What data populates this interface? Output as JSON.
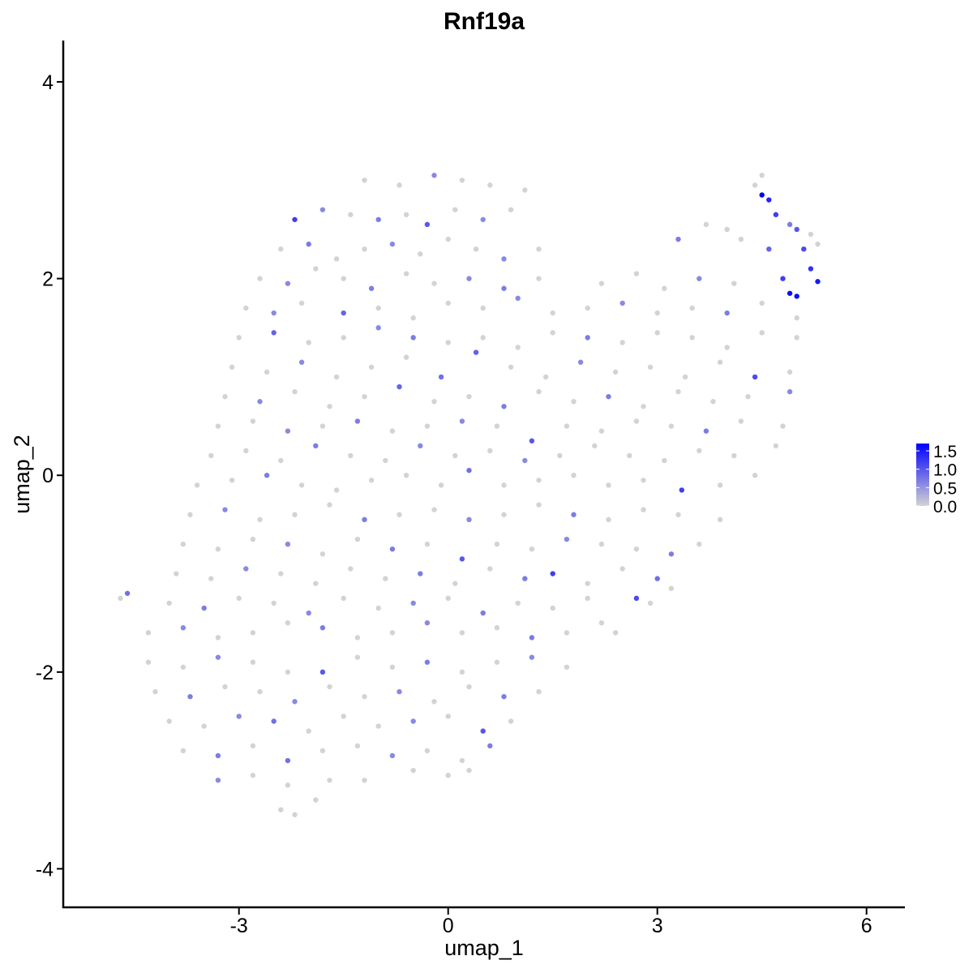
{
  "chart_data": {
    "type": "scatter",
    "title": "Rnf19a",
    "xlabel": "umap_1",
    "ylabel": "umap_2",
    "xlim": [
      -5.52,
      6.55
    ],
    "ylim": [
      -4.4,
      4.42
    ],
    "xticks": [
      -3,
      0,
      3,
      6
    ],
    "xtick_labels": [
      "-3",
      "0",
      "3",
      "6"
    ],
    "yticks": [
      -4,
      -2,
      0,
      2,
      4
    ],
    "ytick_labels": [
      "-4",
      "-2",
      "0",
      "2",
      "4"
    ],
    "grid": false,
    "legend": {
      "placement": "right",
      "ticks": [
        0.0,
        0.5,
        1.0,
        1.5
      ],
      "tick_labels": [
        "0.0",
        "0.5",
        "1.0",
        "1.5"
      ],
      "range": [
        0,
        1.7
      ]
    },
    "colors": {
      "low": "#d3d3d3",
      "high": "#0000ff"
    },
    "points_format": "[umap_1, umap_2, expression]",
    "points": [
      [
        -1.2,
        3.0,
        0
      ],
      [
        -0.7,
        2.95,
        0
      ],
      [
        -0.2,
        3.05,
        0.6
      ],
      [
        0.2,
        3.0,
        0
      ],
      [
        0.6,
        2.95,
        0
      ],
      [
        1.1,
        2.9,
        0
      ],
      [
        4.5,
        3.05,
        0
      ],
      [
        4.4,
        2.95,
        0
      ],
      [
        -2.2,
        2.6,
        1.2
      ],
      [
        -1.8,
        2.7,
        0.6
      ],
      [
        -1.4,
        2.65,
        0
      ],
      [
        -1.0,
        2.6,
        0.7
      ],
      [
        -0.6,
        2.65,
        0
      ],
      [
        -0.3,
        2.55,
        1.0
      ],
      [
        0.1,
        2.7,
        0
      ],
      [
        0.5,
        2.6,
        0.6
      ],
      [
        0.9,
        2.7,
        0
      ],
      [
        4.0,
        2.5,
        0
      ],
      [
        4.5,
        2.85,
        1.7
      ],
      [
        4.6,
        2.8,
        1.4
      ],
      [
        4.7,
        2.65,
        1.2
      ],
      [
        4.9,
        2.55,
        0.7
      ],
      [
        5.2,
        2.45,
        0
      ],
      [
        -2.4,
        2.3,
        0
      ],
      [
        -2.0,
        2.35,
        0.7
      ],
      [
        -1.6,
        2.2,
        0
      ],
      [
        -1.2,
        2.3,
        0
      ],
      [
        -0.8,
        2.35,
        0.6
      ],
      [
        -0.4,
        2.25,
        0
      ],
      [
        0.0,
        2.4,
        0
      ],
      [
        0.4,
        2.3,
        0
      ],
      [
        0.8,
        2.2,
        0.6
      ],
      [
        1.3,
        2.3,
        0
      ],
      [
        3.3,
        2.4,
        0.7
      ],
      [
        3.7,
        2.55,
        0
      ],
      [
        4.2,
        2.4,
        0
      ],
      [
        4.6,
        2.3,
        0.9
      ],
      [
        5.0,
        2.5,
        1.0
      ],
      [
        5.1,
        2.3,
        1.1
      ],
      [
        5.3,
        2.35,
        0
      ],
      [
        -2.7,
        2.0,
        0
      ],
      [
        -2.3,
        1.95,
        0.6
      ],
      [
        -1.9,
        2.1,
        0
      ],
      [
        -1.5,
        2.0,
        0
      ],
      [
        -1.1,
        1.9,
        0.7
      ],
      [
        -0.6,
        2.05,
        0
      ],
      [
        -0.2,
        1.95,
        0
      ],
      [
        0.3,
        2.0,
        0.6
      ],
      [
        0.8,
        1.9,
        0.7
      ],
      [
        1.3,
        2.0,
        0
      ],
      [
        2.2,
        1.95,
        0
      ],
      [
        2.7,
        2.05,
        0
      ],
      [
        3.1,
        1.9,
        0
      ],
      [
        3.6,
        2.0,
        0.6
      ],
      [
        4.1,
        1.95,
        0
      ],
      [
        4.8,
        2.0,
        1.2
      ],
      [
        4.9,
        1.85,
        1.6
      ],
      [
        5.0,
        1.82,
        1.6
      ],
      [
        5.2,
        2.1,
        1.3
      ],
      [
        5.3,
        1.97,
        1.5
      ],
      [
        -2.9,
        1.7,
        0
      ],
      [
        -2.5,
        1.65,
        0.6
      ],
      [
        -2.1,
        1.75,
        0
      ],
      [
        -1.5,
        1.65,
        0.9
      ],
      [
        -1.0,
        1.7,
        0
      ],
      [
        -0.5,
        1.6,
        0
      ],
      [
        0.0,
        1.75,
        0
      ],
      [
        0.5,
        1.7,
        0
      ],
      [
        1.0,
        1.8,
        0.6
      ],
      [
        1.5,
        1.65,
        0
      ],
      [
        2.0,
        1.7,
        0
      ],
      [
        2.5,
        1.75,
        0.6
      ],
      [
        3.0,
        1.65,
        0
      ],
      [
        3.5,
        1.7,
        0
      ],
      [
        4.0,
        1.65,
        0.7
      ],
      [
        4.5,
        1.75,
        0
      ],
      [
        5.0,
        1.6,
        0
      ],
      [
        -3.0,
        1.4,
        0
      ],
      [
        -2.5,
        1.45,
        0.9
      ],
      [
        -2.0,
        1.35,
        0
      ],
      [
        -1.5,
        1.4,
        0
      ],
      [
        -1.0,
        1.5,
        0.6
      ],
      [
        -0.5,
        1.4,
        0.7
      ],
      [
        0.0,
        1.35,
        0
      ],
      [
        0.5,
        1.4,
        0
      ],
      [
        1.0,
        1.3,
        0
      ],
      [
        1.5,
        1.45,
        0
      ],
      [
        2.0,
        1.4,
        0.7
      ],
      [
        2.5,
        1.35,
        0
      ],
      [
        3.0,
        1.45,
        0
      ],
      [
        3.5,
        1.4,
        0
      ],
      [
        4.0,
        1.3,
        0
      ],
      [
        4.5,
        1.45,
        0
      ],
      [
        5.0,
        1.4,
        0
      ],
      [
        -3.1,
        1.1,
        0
      ],
      [
        -2.6,
        1.05,
        0
      ],
      [
        -2.1,
        1.15,
        0.6
      ],
      [
        -1.6,
        1.0,
        0
      ],
      [
        -1.1,
        1.1,
        0
      ],
      [
        -0.6,
        1.2,
        0
      ],
      [
        -0.1,
        1.0,
        0.8
      ],
      [
        0.4,
        1.25,
        0.9
      ],
      [
        0.9,
        1.1,
        0
      ],
      [
        1.4,
        1.0,
        0
      ],
      [
        1.9,
        1.15,
        0.6
      ],
      [
        2.4,
        1.05,
        0
      ],
      [
        2.9,
        1.1,
        0
      ],
      [
        3.4,
        1.0,
        0
      ],
      [
        3.9,
        1.15,
        0
      ],
      [
        4.4,
        1.0,
        1.1
      ],
      [
        4.9,
        1.05,
        0
      ],
      [
        -3.2,
        0.8,
        0
      ],
      [
        -2.7,
        0.75,
        0.6
      ],
      [
        -2.2,
        0.85,
        0
      ],
      [
        -1.7,
        0.7,
        0
      ],
      [
        -1.2,
        0.8,
        0
      ],
      [
        -0.7,
        0.9,
        0.9
      ],
      [
        -0.2,
        0.75,
        0
      ],
      [
        0.3,
        0.8,
        0
      ],
      [
        0.8,
        0.7,
        0.7
      ],
      [
        1.3,
        0.85,
        0
      ],
      [
        1.8,
        0.75,
        0
      ],
      [
        2.3,
        0.8,
        0.7
      ],
      [
        2.8,
        0.7,
        0
      ],
      [
        3.3,
        0.85,
        0
      ],
      [
        3.8,
        0.75,
        0
      ],
      [
        4.3,
        0.8,
        0
      ],
      [
        4.9,
        0.85,
        0.6
      ],
      [
        -3.3,
        0.5,
        0
      ],
      [
        -2.8,
        0.55,
        0
      ],
      [
        -2.3,
        0.45,
        0.6
      ],
      [
        -1.8,
        0.5,
        0
      ],
      [
        -1.3,
        0.55,
        0.7
      ],
      [
        -0.8,
        0.45,
        0
      ],
      [
        -0.3,
        0.5,
        0
      ],
      [
        0.2,
        0.55,
        0.6
      ],
      [
        0.7,
        0.5,
        0
      ],
      [
        1.2,
        0.35,
        1.0
      ],
      [
        1.7,
        0.5,
        0
      ],
      [
        2.2,
        0.45,
        0
      ],
      [
        2.7,
        0.55,
        0
      ],
      [
        3.2,
        0.5,
        0
      ],
      [
        3.7,
        0.45,
        0.7
      ],
      [
        4.2,
        0.55,
        0
      ],
      [
        4.8,
        0.5,
        0
      ],
      [
        -3.4,
        0.2,
        0
      ],
      [
        -2.9,
        0.25,
        0
      ],
      [
        -2.4,
        0.15,
        0
      ],
      [
        -1.9,
        0.3,
        0.7
      ],
      [
        -1.4,
        0.2,
        0
      ],
      [
        -0.9,
        0.15,
        0
      ],
      [
        -0.4,
        0.3,
        0.6
      ],
      [
        0.1,
        0.2,
        0
      ],
      [
        0.6,
        0.25,
        0
      ],
      [
        1.1,
        0.15,
        0.6
      ],
      [
        1.6,
        0.2,
        0
      ],
      [
        2.1,
        0.3,
        0
      ],
      [
        2.6,
        0.2,
        0
      ],
      [
        3.1,
        0.15,
        0
      ],
      [
        3.6,
        0.25,
        0
      ],
      [
        4.1,
        0.2,
        0
      ],
      [
        4.7,
        0.3,
        0
      ],
      [
        -3.6,
        -0.1,
        0
      ],
      [
        -3.1,
        -0.05,
        0
      ],
      [
        -2.6,
        0.0,
        0.7
      ],
      [
        -2.1,
        -0.1,
        0
      ],
      [
        -1.6,
        -0.15,
        0
      ],
      [
        -1.1,
        -0.05,
        0
      ],
      [
        -0.6,
        0.0,
        0
      ],
      [
        -0.1,
        -0.1,
        0
      ],
      [
        0.3,
        0.05,
        0.8
      ],
      [
        0.8,
        -0.1,
        0
      ],
      [
        1.3,
        -0.05,
        0
      ],
      [
        1.8,
        0.0,
        0
      ],
      [
        2.3,
        -0.1,
        0
      ],
      [
        2.8,
        -0.05,
        0
      ],
      [
        3.35,
        -0.15,
        1.2
      ],
      [
        3.9,
        -0.1,
        0
      ],
      [
        4.4,
        0.0,
        0
      ],
      [
        -3.7,
        -0.4,
        0
      ],
      [
        -3.2,
        -0.35,
        0.6
      ],
      [
        -2.7,
        -0.45,
        0
      ],
      [
        -2.2,
        -0.4,
        0
      ],
      [
        -1.7,
        -0.3,
        0
      ],
      [
        -1.2,
        -0.45,
        0.7
      ],
      [
        -0.7,
        -0.4,
        0
      ],
      [
        -0.2,
        -0.35,
        0
      ],
      [
        0.3,
        -0.45,
        0.6
      ],
      [
        0.8,
        -0.4,
        0
      ],
      [
        1.3,
        -0.3,
        0
      ],
      [
        1.8,
        -0.4,
        0.7
      ],
      [
        2.3,
        -0.45,
        0
      ],
      [
        2.8,
        -0.35,
        0
      ],
      [
        3.3,
        -0.4,
        0
      ],
      [
        3.9,
        -0.45,
        0
      ],
      [
        -3.8,
        -0.7,
        0
      ],
      [
        -3.3,
        -0.75,
        0
      ],
      [
        -2.8,
        -0.65,
        0
      ],
      [
        -2.3,
        -0.7,
        0.6
      ],
      [
        -1.8,
        -0.8,
        0
      ],
      [
        -1.3,
        -0.65,
        0
      ],
      [
        -0.8,
        -0.75,
        0.7
      ],
      [
        -0.3,
        -0.7,
        0
      ],
      [
        0.2,
        -0.85,
        1.0
      ],
      [
        0.7,
        -0.7,
        0
      ],
      [
        1.2,
        -0.75,
        0
      ],
      [
        1.7,
        -0.65,
        0.6
      ],
      [
        2.2,
        -0.7,
        0
      ],
      [
        2.7,
        -0.75,
        0
      ],
      [
        3.2,
        -0.8,
        0.7
      ],
      [
        3.6,
        -0.7,
        0
      ],
      [
        -3.9,
        -1.0,
        0
      ],
      [
        -3.4,
        -1.05,
        0
      ],
      [
        -2.9,
        -0.95,
        0.6
      ],
      [
        -2.4,
        -1.0,
        0
      ],
      [
        -1.9,
        -1.1,
        0
      ],
      [
        -1.4,
        -0.95,
        0
      ],
      [
        -0.9,
        -1.05,
        0
      ],
      [
        -0.4,
        -1.0,
        0.7
      ],
      [
        0.1,
        -1.1,
        0
      ],
      [
        0.6,
        -0.95,
        0
      ],
      [
        1.1,
        -1.05,
        0.7
      ],
      [
        1.5,
        -1.0,
        1.2
      ],
      [
        2.0,
        -1.1,
        0
      ],
      [
        2.5,
        -0.95,
        0
      ],
      [
        3.0,
        -1.05,
        0.8
      ],
      [
        3.2,
        -1.15,
        0
      ],
      [
        -4.7,
        -1.25,
        0
      ],
      [
        -4.6,
        -1.2,
        0.8
      ],
      [
        -4.0,
        -1.3,
        0
      ],
      [
        -3.5,
        -1.35,
        0.7
      ],
      [
        -3.0,
        -1.25,
        0
      ],
      [
        -2.5,
        -1.3,
        0
      ],
      [
        -2.0,
        -1.4,
        0.6
      ],
      [
        -1.5,
        -1.25,
        0
      ],
      [
        -1.0,
        -1.35,
        0
      ],
      [
        -0.5,
        -1.3,
        0.6
      ],
      [
        0.0,
        -1.25,
        0
      ],
      [
        0.5,
        -1.4,
        0.7
      ],
      [
        1.0,
        -1.3,
        0
      ],
      [
        1.5,
        -1.35,
        0
      ],
      [
        2.0,
        -1.25,
        0
      ],
      [
        2.7,
        -1.25,
        1.1
      ],
      [
        2.9,
        -1.3,
        0
      ],
      [
        -4.3,
        -1.6,
        0
      ],
      [
        -3.8,
        -1.55,
        0.6
      ],
      [
        -3.3,
        -1.65,
        0
      ],
      [
        -2.8,
        -1.6,
        0
      ],
      [
        -2.3,
        -1.5,
        0
      ],
      [
        -1.8,
        -1.55,
        0.7
      ],
      [
        -1.3,
        -1.65,
        0
      ],
      [
        -0.8,
        -1.6,
        0
      ],
      [
        -0.3,
        -1.5,
        0.6
      ],
      [
        0.2,
        -1.6,
        0
      ],
      [
        0.7,
        -1.55,
        0
      ],
      [
        1.2,
        -1.65,
        0.7
      ],
      [
        1.7,
        -1.6,
        0
      ],
      [
        2.2,
        -1.5,
        0
      ],
      [
        2.4,
        -1.6,
        0
      ],
      [
        -4.3,
        -1.9,
        0
      ],
      [
        -3.8,
        -1.95,
        0
      ],
      [
        -3.3,
        -1.85,
        0.6
      ],
      [
        -2.8,
        -1.9,
        0
      ],
      [
        -2.3,
        -2.0,
        0
      ],
      [
        -1.8,
        -2.0,
        1.0
      ],
      [
        -1.3,
        -1.85,
        0
      ],
      [
        -0.8,
        -1.95,
        0
      ],
      [
        -0.3,
        -1.9,
        0.7
      ],
      [
        0.2,
        -2.0,
        0
      ],
      [
        0.7,
        -1.9,
        0
      ],
      [
        1.2,
        -1.85,
        0.6
      ],
      [
        1.7,
        -1.95,
        0
      ],
      [
        -4.2,
        -2.2,
        0
      ],
      [
        -3.7,
        -2.25,
        0.7
      ],
      [
        -3.2,
        -2.15,
        0
      ],
      [
        -2.7,
        -2.2,
        0
      ],
      [
        -2.2,
        -2.3,
        0.6
      ],
      [
        -1.7,
        -2.15,
        0
      ],
      [
        -1.2,
        -2.25,
        0
      ],
      [
        -0.7,
        -2.2,
        0.6
      ],
      [
        -0.2,
        -2.3,
        0
      ],
      [
        0.3,
        -2.15,
        0
      ],
      [
        0.8,
        -2.25,
        0.7
      ],
      [
        1.3,
        -2.2,
        0
      ],
      [
        -4.0,
        -2.5,
        0
      ],
      [
        -3.5,
        -2.55,
        0
      ],
      [
        -3.0,
        -2.45,
        0.6
      ],
      [
        -2.5,
        -2.5,
        0.8
      ],
      [
        -2.0,
        -2.6,
        0
      ],
      [
        -1.5,
        -2.45,
        0
      ],
      [
        -1.0,
        -2.55,
        0
      ],
      [
        -0.5,
        -2.5,
        0.6
      ],
      [
        0.0,
        -2.45,
        0
      ],
      [
        0.5,
        -2.6,
        1.0
      ],
      [
        0.9,
        -2.5,
        0
      ],
      [
        -3.8,
        -2.8,
        0
      ],
      [
        -3.3,
        -2.85,
        0.7
      ],
      [
        -2.8,
        -2.75,
        0
      ],
      [
        -2.3,
        -2.9,
        0.8
      ],
      [
        -1.8,
        -2.8,
        0
      ],
      [
        -1.3,
        -2.75,
        0
      ],
      [
        -0.8,
        -2.85,
        0.6
      ],
      [
        -0.3,
        -2.8,
        0
      ],
      [
        0.2,
        -2.9,
        0
      ],
      [
        0.6,
        -2.75,
        0.7
      ],
      [
        -3.3,
        -3.1,
        0.6
      ],
      [
        -2.8,
        -3.05,
        0
      ],
      [
        -2.3,
        -3.15,
        0
      ],
      [
        -1.7,
        -3.1,
        0
      ],
      [
        -1.2,
        -3.1,
        0
      ],
      [
        -0.5,
        -3.0,
        0
      ],
      [
        0.0,
        -3.05,
        0
      ],
      [
        0.3,
        -3.0,
        0
      ],
      [
        -2.4,
        -3.4,
        0
      ],
      [
        -2.2,
        -3.45,
        0
      ],
      [
        -1.9,
        -3.3,
        0
      ]
    ]
  }
}
